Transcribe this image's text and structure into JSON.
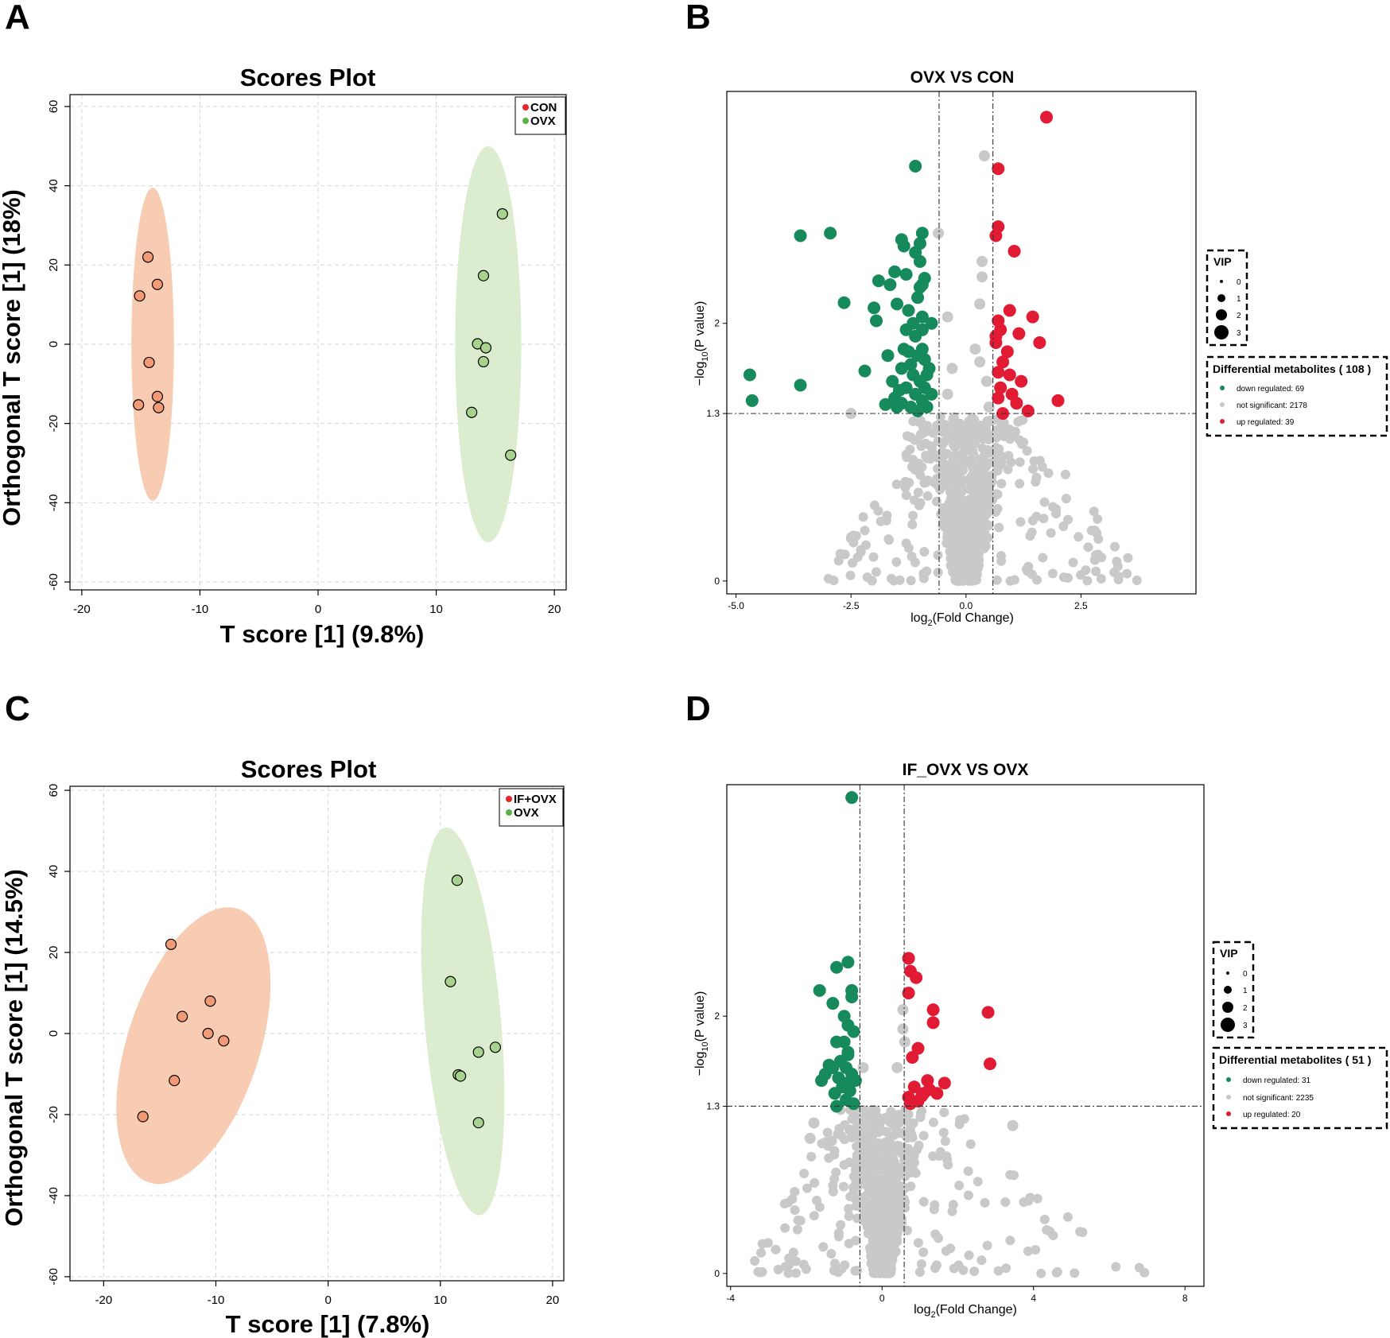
{
  "panels": {
    "A": {
      "letter": "A"
    },
    "B": {
      "letter": "B"
    },
    "C": {
      "letter": "C"
    },
    "D": {
      "letter": "D"
    }
  },
  "chart_data": [
    {
      "id": "A",
      "type": "scatter",
      "title": "Scores Plot",
      "xlabel": "T score [1] (9.8%)",
      "ylabel": "Orthogonal T score [1] (18%)",
      "xlim": [
        -21,
        21
      ],
      "ylim": [
        -62,
        63
      ],
      "xticks": [
        -20,
        -10,
        0,
        10,
        20
      ],
      "yticks": [
        -60,
        -40,
        -20,
        0,
        20,
        40,
        60
      ],
      "grid": true,
      "legend": {
        "position": "top-right",
        "entries": [
          {
            "label": "CON",
            "color": "#e8252b"
          },
          {
            "label": "OVX",
            "color": "#5cb345"
          }
        ]
      },
      "series": [
        {
          "name": "CON",
          "fill": "#f29a76",
          "ellipse_fill": "#f8cbb3",
          "ellipse": {
            "cx": -14.0,
            "cy": 0,
            "rx": 1.8,
            "ry": 39.5
          },
          "points": [
            [
              -14.4,
              22
            ],
            [
              -15.1,
              12.2
            ],
            [
              -13.6,
              15.1
            ],
            [
              -14.3,
              -4.6
            ],
            [
              -15.2,
              -15.3
            ],
            [
              -13.6,
              -13.2
            ],
            [
              -13.5,
              -16.0
            ]
          ]
        },
        {
          "name": "OVX",
          "fill": "#a7d38e",
          "ellipse_fill": "#dcedcf",
          "ellipse": {
            "cx": 14.4,
            "cy": 0,
            "rx": 2.8,
            "ry": 50
          },
          "points": [
            [
              15.6,
              32.9
            ],
            [
              14.0,
              17.3
            ],
            [
              13.5,
              0.1
            ],
            [
              14.2,
              -0.9
            ],
            [
              14.0,
              -4.4
            ],
            [
              13.0,
              -17.2
            ],
            [
              16.3,
              -28.0
            ]
          ]
        }
      ]
    },
    {
      "id": "B",
      "type": "scatter",
      "title": "OVX VS CON",
      "xlabel": "log2(Fold Change)",
      "ylabel": "−log10(P value)",
      "xlim": [
        -5.2,
        5.0
      ],
      "ylim": [
        -0.1,
        3.8
      ],
      "xticks": [
        "-5.0",
        "-2.5",
        "0.0",
        "2.5"
      ],
      "yticks": [
        "0",
        "1.3",
        "2"
      ],
      "thresholds": {
        "x": [
          -0.585,
          0.585
        ],
        "y": 1.3
      },
      "vip_legend": {
        "title": "VIP",
        "levels": [
          "0",
          "1",
          "2",
          "3"
        ]
      },
      "diff_legend": {
        "title": "Differential metabolites ( 108 )",
        "items": [
          {
            "label": "down regulated: 69",
            "color": "#168a5b"
          },
          {
            "label": "not significant: 2178",
            "color": "#c9c9c9"
          },
          {
            "label": "up regulated: 39",
            "color": "#e21b34"
          }
        ]
      },
      "colors": {
        "down": "#168a5b",
        "ns": "#c9c9c9",
        "up": "#e21b34"
      },
      "down": [
        [
          -1.1,
          3.22
        ],
        [
          -0.95,
          2.7
        ],
        [
          -1.4,
          2.65
        ],
        [
          -1.35,
          2.6
        ],
        [
          -1.1,
          2.55
        ],
        [
          -1.0,
          2.48
        ],
        [
          -0.95,
          2.3
        ],
        [
          -1.3,
          2.38
        ],
        [
          -0.9,
          2.35
        ],
        [
          -1.55,
          2.4
        ],
        [
          -1.5,
          2.15
        ],
        [
          -1.05,
          2.2
        ],
        [
          -0.95,
          2.05
        ],
        [
          -1.3,
          1.95
        ],
        [
          -1.1,
          1.9
        ],
        [
          -0.95,
          1.8
        ],
        [
          -1.25,
          1.78
        ],
        [
          -1.05,
          1.75
        ],
        [
          -1.4,
          1.65
        ],
        [
          -0.9,
          1.72
        ],
        [
          -1.15,
          1.6
        ],
        [
          -1.0,
          1.55
        ],
        [
          -1.3,
          1.5
        ],
        [
          -1.6,
          1.55
        ],
        [
          -0.85,
          1.6
        ],
        [
          -1.1,
          1.45
        ],
        [
          -0.95,
          1.4
        ],
        [
          -1.4,
          1.38
        ],
        [
          -1.2,
          1.35
        ],
        [
          -0.85,
          1.35
        ],
        [
          -1.05,
          1.32
        ],
        [
          -1.55,
          1.42
        ],
        [
          -1.75,
          1.37
        ],
        [
          -0.75,
          1.45
        ],
        [
          -0.8,
          1.65
        ],
        [
          -1.0,
          2.28
        ],
        [
          -1.45,
          1.48
        ],
        [
          -1.5,
          1.35
        ],
        [
          -2.95,
          2.7
        ],
        [
          -3.6,
          2.68
        ],
        [
          -2.65,
          2.16
        ],
        [
          -2.0,
          2.12
        ],
        [
          -1.95,
          2.02
        ],
        [
          -2.2,
          1.63
        ],
        [
          -3.6,
          1.52
        ],
        [
          -4.7,
          1.6
        ],
        [
          -4.65,
          1.4
        ],
        [
          -1.9,
          2.33
        ],
        [
          -1.7,
          1.75
        ],
        [
          -0.75,
          2.0
        ],
        [
          -1.25,
          2.1
        ],
        [
          -1.65,
          2.3
        ],
        [
          -1.2,
          1.68
        ],
        [
          -0.9,
          1.5
        ],
        [
          -1.35,
          1.8
        ],
        [
          -1.0,
          2.62
        ],
        [
          -0.95,
          1.95
        ],
        [
          -1.15,
          2.0
        ]
      ],
      "up": [
        [
          1.75,
          3.6
        ],
        [
          0.7,
          3.2
        ],
        [
          0.7,
          2.75
        ],
        [
          0.65,
          2.68
        ],
        [
          1.05,
          2.56
        ],
        [
          0.95,
          2.1
        ],
        [
          1.45,
          2.05
        ],
        [
          0.7,
          2.02
        ],
        [
          0.75,
          1.95
        ],
        [
          1.15,
          1.92
        ],
        [
          0.65,
          1.85
        ],
        [
          0.9,
          1.78
        ],
        [
          1.6,
          1.85
        ],
        [
          0.8,
          1.7
        ],
        [
          0.7,
          1.62
        ],
        [
          0.75,
          1.5
        ],
        [
          1.0,
          1.45
        ],
        [
          1.1,
          1.38
        ],
        [
          0.7,
          1.42
        ],
        [
          2.0,
          1.4
        ],
        [
          1.35,
          1.32
        ],
        [
          0.8,
          1.3
        ],
        [
          1.2,
          1.55
        ],
        [
          0.65,
          1.9
        ],
        [
          0.95,
          1.6
        ]
      ],
      "ns": [
        [
          0.4,
          3.3
        ],
        [
          -0.6,
          2.7
        ],
        [
          0.35,
          2.48
        ],
        [
          0.35,
          2.36
        ],
        [
          -0.4,
          2.05
        ],
        [
          0.3,
          2.15
        ],
        [
          0.2,
          1.8
        ],
        [
          0.3,
          1.7
        ],
        [
          -0.4,
          1.45
        ],
        [
          -2.5,
          1.3
        ],
        [
          -0.3,
          1.65
        ],
        [
          0.45,
          1.55
        ],
        [
          0.5,
          1.35
        ]
      ]
    },
    {
      "id": "C",
      "type": "scatter",
      "title": "Scores Plot",
      "xlabel": "T score [1] (7.8%)",
      "ylabel": "Orthogonal T score [1] (14.5%)",
      "xlim": [
        -23,
        21
      ],
      "ylim": [
        -61,
        61
      ],
      "xticks": [
        -20,
        -10,
        0,
        10,
        20
      ],
      "yticks": [
        -60,
        -40,
        -20,
        0,
        20,
        40,
        60
      ],
      "grid": true,
      "legend": {
        "position": "top-right",
        "entries": [
          {
            "label": "IF+OVX",
            "color": "#e8252b"
          },
          {
            "label": "OVX",
            "color": "#5cb345"
          }
        ]
      },
      "series": [
        {
          "name": "IF+OVX",
          "fill": "#f29a76",
          "ellipse_fill": "#f8cbb3",
          "ellipse": {
            "cx": -12.0,
            "cy": -3.0,
            "rx": 5.9,
            "ry": 35.5,
            "rotate": 18
          },
          "points": [
            [
              -14.0,
              22.0
            ],
            [
              -13.0,
              4.2
            ],
            [
              -10.5,
              8.0
            ],
            [
              -10.7,
              0.0
            ],
            [
              -9.3,
              -1.8
            ],
            [
              -13.7,
              -11.6
            ],
            [
              -16.5,
              -20.5
            ]
          ]
        },
        {
          "name": "OVX",
          "fill": "#a7d38e",
          "ellipse_fill": "#dcedcf",
          "ellipse": {
            "cx": 12.0,
            "cy": 3.0,
            "rx": 3.4,
            "ry": 48,
            "rotate": -5
          },
          "points": [
            [
              11.5,
              37.8
            ],
            [
              10.9,
              12.8
            ],
            [
              11.6,
              -10.2
            ],
            [
              11.8,
              -10.5
            ],
            [
              13.4,
              -4.6
            ],
            [
              14.9,
              -3.4
            ],
            [
              13.4,
              -22.0
            ]
          ]
        }
      ]
    },
    {
      "id": "D",
      "type": "scatter",
      "title": "IF_OVX VS OVX",
      "xlabel": "log2(Fold Change)",
      "ylabel": "−log10(P value)",
      "xlim": [
        -4.1,
        8.5
      ],
      "ylim": [
        -0.1,
        3.8
      ],
      "xticks": [
        "-4",
        "0",
        "4",
        "8"
      ],
      "yticks": [
        "0",
        "1.3",
        "2"
      ],
      "thresholds": {
        "x": [
          -0.585,
          0.585
        ],
        "y": 1.3
      },
      "vip_legend": {
        "title": "VIP",
        "levels": [
          "0",
          "1",
          "2",
          "3"
        ]
      },
      "diff_legend": {
        "title": "Differential metabolites ( 51 )",
        "items": [
          {
            "label": "down regulated: 31",
            "color": "#168a5b"
          },
          {
            "label": "not significant: 2235",
            "color": "#c9c9c9"
          },
          {
            "label": "up regulated: 20",
            "color": "#e21b34"
          }
        ]
      },
      "colors": {
        "down": "#168a5b",
        "ns": "#c9c9c9",
        "up": "#e21b34"
      },
      "down": [
        [
          -0.8,
          3.7
        ],
        [
          -0.9,
          2.42
        ],
        [
          -1.2,
          2.38
        ],
        [
          -1.65,
          2.2
        ],
        [
          -0.8,
          2.2
        ],
        [
          -1.3,
          2.1
        ],
        [
          -0.9,
          1.93
        ],
        [
          -0.75,
          1.88
        ],
        [
          -1.0,
          1.8
        ],
        [
          -0.9,
          1.72
        ],
        [
          -1.1,
          1.65
        ],
        [
          -1.3,
          1.6
        ],
        [
          -0.95,
          1.6
        ],
        [
          -1.5,
          1.55
        ],
        [
          -0.8,
          1.55
        ],
        [
          -1.15,
          1.52
        ],
        [
          -1.6,
          1.5
        ],
        [
          -1.0,
          1.48
        ],
        [
          -0.85,
          1.42
        ],
        [
          -1.25,
          1.4
        ],
        [
          -0.95,
          1.35
        ],
        [
          -1.2,
          1.3
        ],
        [
          -0.75,
          1.32
        ],
        [
          -1.05,
          1.45
        ],
        [
          -1.4,
          1.62
        ],
        [
          -0.7,
          1.5
        ],
        [
          -0.9,
          1.7
        ],
        [
          -1.2,
          1.8
        ],
        [
          -1.0,
          2.0
        ],
        [
          -0.8,
          2.15
        ]
      ],
      "up": [
        [
          0.7,
          2.45
        ],
        [
          0.75,
          2.35
        ],
        [
          0.9,
          2.3
        ],
        [
          0.7,
          2.18
        ],
        [
          1.35,
          2.05
        ],
        [
          2.8,
          2.03
        ],
        [
          1.35,
          1.95
        ],
        [
          0.95,
          1.75
        ],
        [
          0.8,
          1.68
        ],
        [
          2.85,
          1.63
        ],
        [
          1.65,
          1.48
        ],
        [
          0.85,
          1.45
        ],
        [
          1.25,
          1.43
        ],
        [
          1.45,
          1.4
        ],
        [
          1.05,
          1.38
        ],
        [
          0.7,
          1.37
        ],
        [
          0.95,
          1.34
        ],
        [
          1.1,
          1.4
        ],
        [
          0.75,
          1.32
        ],
        [
          1.2,
          1.5
        ]
      ],
      "ns": [
        [
          0.55,
          2.05
        ],
        [
          0.6,
          1.8
        ],
        [
          0.4,
          1.6
        ],
        [
          -0.5,
          1.6
        ],
        [
          3.45,
          1.15
        ],
        [
          -1.9,
          1.05
        ],
        [
          -1.8,
          1.17
        ],
        [
          0.55,
          1.9
        ]
      ]
    }
  ]
}
